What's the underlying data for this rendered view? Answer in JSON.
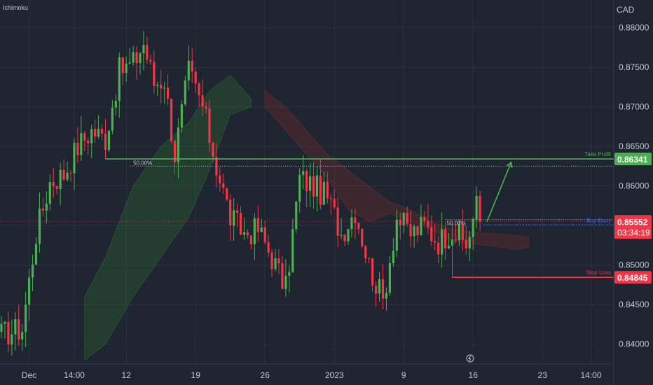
{
  "indicator_label": "Ichimoku",
  "currency_label": "CAD",
  "colors": {
    "background": "#1e2530",
    "up": "#4caf50",
    "down": "#f23645",
    "take_profit": "#4caf50",
    "stop_loss": "#f23645",
    "buy_entry": "#2962ff",
    "price_tag": "#f23645",
    "cloud_green": "#2e7d32",
    "cloud_red": "#8b2d2d"
  },
  "chart_data": {
    "type": "candlestick",
    "ylim": [
      0.8375,
      0.8835
    ],
    "y_ticks": [
      "0.84000",
      "0.84500",
      "0.85000",
      "0.85500",
      "0.86000",
      "0.86500",
      "0.87000",
      "0.87500",
      "0.88000"
    ],
    "y_tick_values": [
      0.84,
      0.845,
      0.85,
      0.855,
      0.86,
      0.865,
      0.87,
      0.875,
      0.88
    ],
    "x_ticks": [
      "Dec",
      "14:00",
      "12",
      "19",
      "26",
      "2023",
      "9",
      "16",
      "23",
      "14:00"
    ],
    "x_tick_bar_index": [
      8,
      21,
      36,
      56,
      76,
      96,
      116,
      136,
      156,
      170
    ],
    "bar_count": 176,
    "anchors": [
      [
        0,
        0.8412
      ],
      [
        6,
        0.842
      ],
      [
        10,
        0.854
      ],
      [
        14,
        0.8605
      ],
      [
        18,
        0.8615
      ],
      [
        22,
        0.865
      ],
      [
        26,
        0.867
      ],
      [
        30,
        0.866
      ],
      [
        34,
        0.8745
      ],
      [
        38,
        0.8755
      ],
      [
        41,
        0.878
      ],
      [
        44,
        0.873
      ],
      [
        47,
        0.8735
      ],
      [
        50,
        0.864
      ],
      [
        54,
        0.8745
      ],
      [
        58,
        0.87
      ],
      [
        62,
        0.8625
      ],
      [
        66,
        0.856
      ],
      [
        70,
        0.854
      ],
      [
        74,
        0.8545
      ],
      [
        78,
        0.851
      ],
      [
        82,
        0.847
      ],
      [
        86,
        0.861
      ],
      [
        90,
        0.86
      ],
      [
        94,
        0.8585
      ],
      [
        98,
        0.854
      ],
      [
        102,
        0.857
      ],
      [
        106,
        0.85
      ],
      [
        110,
        0.8455
      ],
      [
        114,
        0.856
      ],
      [
        118,
        0.854
      ],
      [
        122,
        0.855
      ],
      [
        126,
        0.853
      ],
      [
        130,
        0.8545
      ],
      [
        134,
        0.8525
      ],
      [
        137,
        0.8575
      ],
      [
        138,
        0.85552
      ]
    ],
    "current_price": "0.85552",
    "countdown": "03:34:19",
    "fib_level": {
      "label": "50.00%",
      "value": 0.8625,
      "from_bar": 37
    },
    "fib_level_2": {
      "label": "50.00%",
      "value": 0.85575,
      "from_bar": 128
    },
    "take_profit": {
      "label": "Take Profit",
      "value": 0.86341,
      "price_label": "0.86341",
      "from_bar": 30
    },
    "buy_entry": {
      "label": "Buy Entry",
      "value": 0.8551,
      "from_bar": 139
    },
    "stop_loss": {
      "label": "Stop Loss",
      "value": 0.84845,
      "price_label": "0.84845",
      "from_bar": 130
    },
    "arrow": {
      "from": [
        140,
        0.8555
      ],
      "to": [
        147,
        0.863
      ]
    },
    "cloud_green": [
      [
        24,
        0.838,
        0.846
      ],
      [
        30,
        0.84,
        0.851
      ],
      [
        38,
        0.846,
        0.86
      ],
      [
        46,
        0.851,
        0.865
      ],
      [
        54,
        0.856,
        0.868
      ],
      [
        60,
        0.862,
        0.872
      ],
      [
        66,
        0.869,
        0.874
      ],
      [
        72,
        0.87,
        0.871
      ]
    ],
    "cloud_red": [
      [
        76,
        0.87,
        0.872
      ],
      [
        82,
        0.867,
        0.87
      ],
      [
        88,
        0.864,
        0.867
      ],
      [
        94,
        0.861,
        0.864
      ],
      [
        100,
        0.857,
        0.862
      ],
      [
        106,
        0.8555,
        0.86
      ],
      [
        112,
        0.8565,
        0.858
      ],
      [
        118,
        0.8555,
        0.857
      ],
      [
        124,
        0.8545,
        0.8555
      ],
      [
        130,
        0.853,
        0.8545
      ],
      [
        140,
        0.8525,
        0.854
      ],
      [
        148,
        0.852,
        0.8538
      ],
      [
        152,
        0.8522,
        0.8535
      ]
    ]
  }
}
